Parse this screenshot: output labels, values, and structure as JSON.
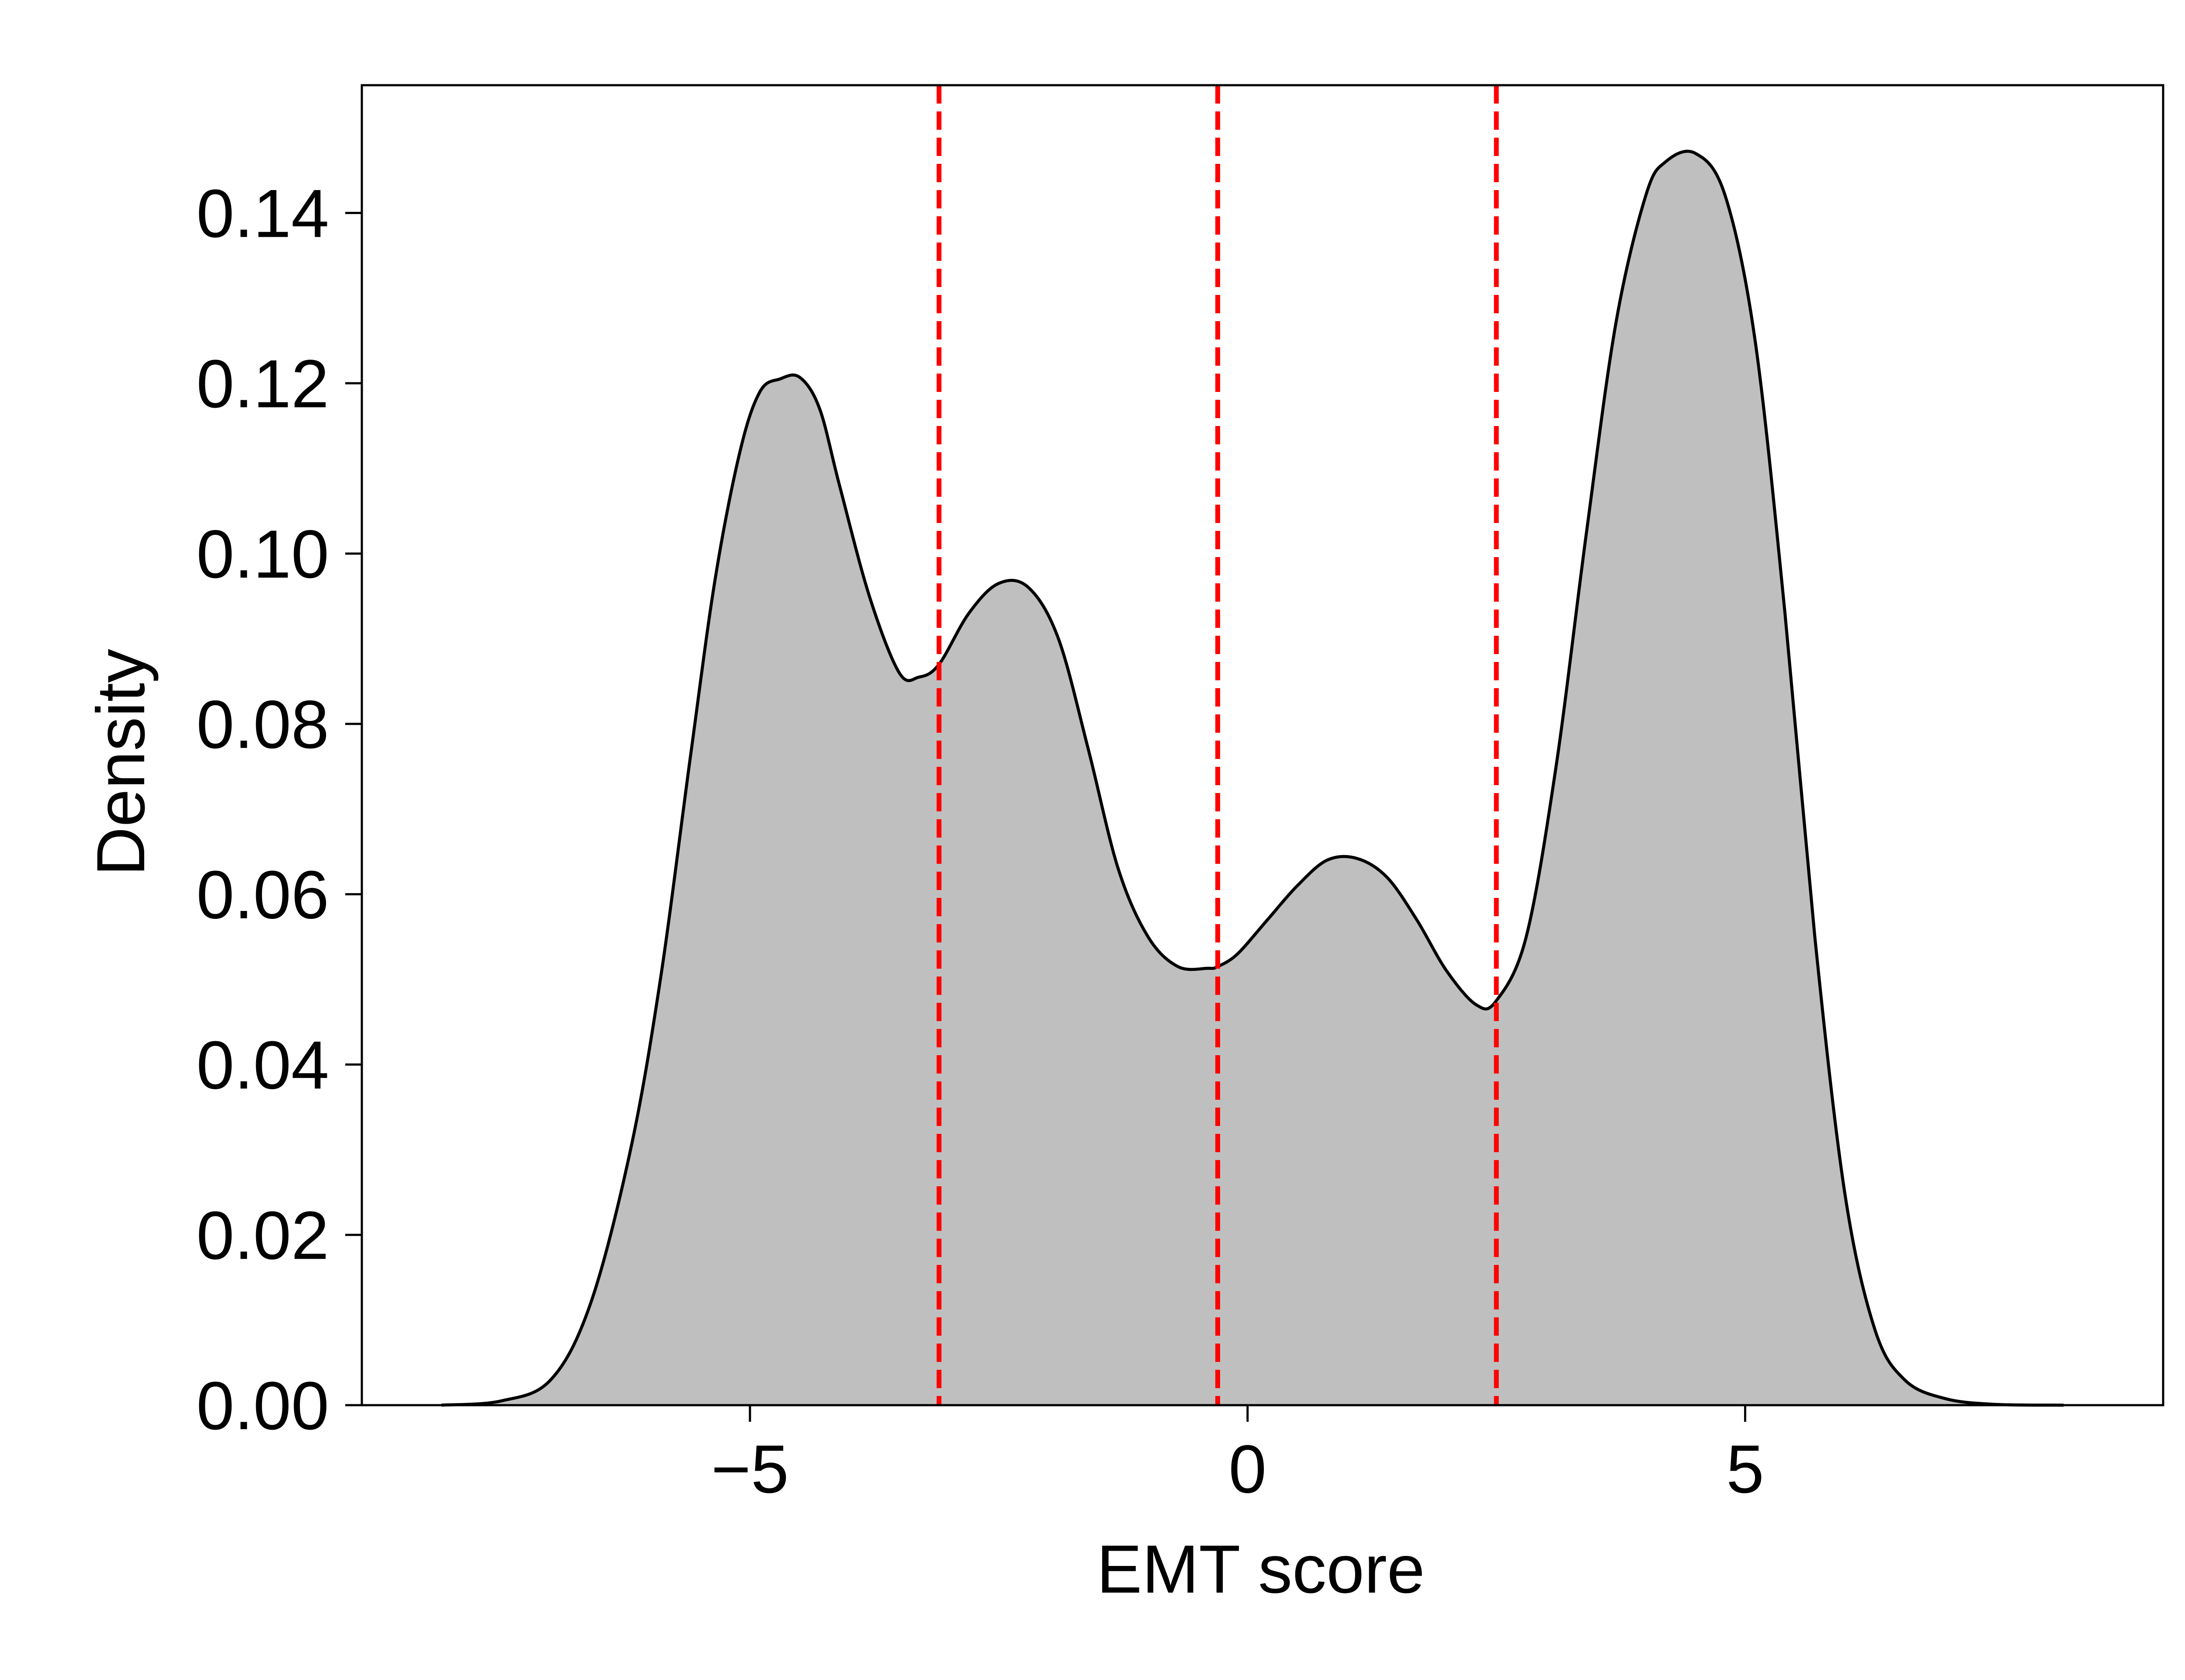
{
  "chart_data": {
    "type": "area",
    "title": "",
    "xlabel": "EMT score",
    "ylabel": "Density",
    "xlim": [
      -8.9,
      9.2
    ],
    "ylim": [
      0.0,
      0.155
    ],
    "xticks": [
      -5,
      0,
      5
    ],
    "xtick_labels": [
      "−5",
      "0",
      "5"
    ],
    "yticks": [
      0.0,
      0.02,
      0.04,
      0.06,
      0.08,
      0.1,
      0.12,
      0.14
    ],
    "ytick_labels": [
      "0.00",
      "0.02",
      "0.04",
      "0.06",
      "0.08",
      "0.10",
      "0.12",
      "0.14"
    ],
    "grid": false,
    "legend": "none",
    "series": [
      {
        "kind": "kde",
        "fill_color": "#bfbfbf",
        "line_color": "#000000",
        "x": [
          -8.1,
          -7.5,
          -7.0,
          -6.6,
          -6.2,
          -5.9,
          -5.6,
          -5.35,
          -5.1,
          -4.9,
          -4.7,
          -4.5,
          -4.3,
          -4.1,
          -3.8,
          -3.5,
          -3.3,
          -3.1,
          -2.8,
          -2.5,
          -2.2,
          -1.9,
          -1.6,
          -1.3,
          -1.0,
          -0.7,
          -0.4,
          -0.3,
          -0.1,
          0.2,
          0.5,
          0.8,
          1.1,
          1.4,
          1.7,
          2.0,
          2.3,
          2.5,
          2.8,
          3.1,
          3.4,
          3.7,
          4.0,
          4.2,
          4.5,
          4.8,
          5.1,
          5.4,
          5.7,
          6.0,
          6.3,
          6.6,
          7.0,
          7.5,
          8.2
        ],
        "y": [
          0.0,
          0.0005,
          0.003,
          0.012,
          0.03,
          0.05,
          0.076,
          0.097,
          0.112,
          0.119,
          0.1205,
          0.1207,
          0.117,
          0.108,
          0.095,
          0.086,
          0.0855,
          0.087,
          0.093,
          0.0965,
          0.096,
          0.09,
          0.077,
          0.063,
          0.055,
          0.0515,
          0.0513,
          0.0515,
          0.053,
          0.057,
          0.061,
          0.064,
          0.0642,
          0.062,
          0.057,
          0.051,
          0.047,
          0.0475,
          0.055,
          0.075,
          0.102,
          0.127,
          0.142,
          0.146,
          0.147,
          0.142,
          0.125,
          0.093,
          0.055,
          0.025,
          0.009,
          0.003,
          0.0008,
          0.0001,
          0.0
        ]
      }
    ],
    "vlines": [
      {
        "x": -3.1,
        "color": "#ff0000",
        "style": "dashed"
      },
      {
        "x": -0.3,
        "color": "#ff0000",
        "style": "dashed"
      },
      {
        "x": 2.5,
        "color": "#ff0000",
        "style": "dashed"
      }
    ]
  }
}
